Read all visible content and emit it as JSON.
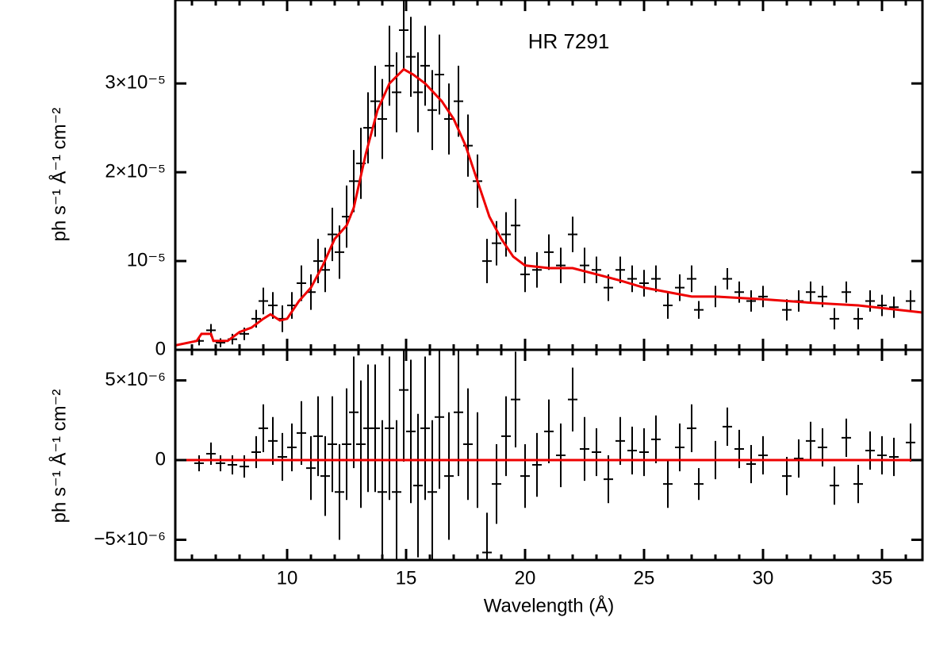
{
  "chart_data": [
    {
      "type": "errorbar",
      "annotation": "HR 7291",
      "ylabel": "ph s⁻¹ Å⁻¹ cm⁻²",
      "xlim": [
        5.3,
        36.7
      ],
      "ylim": [
        0,
        3.94e-05
      ],
      "yticks": [
        0,
        {
          "value": 1e-05,
          "label": "10⁻⁵"
        },
        {
          "value": 2e-05,
          "label": "2×10⁻⁵"
        },
        {
          "value": 3e-05,
          "label": "3×10⁻⁵"
        }
      ],
      "series": [
        {
          "type": "errorbar",
          "color": "#000000",
          "x": [
            6.3,
            6.8,
            7.2,
            7.7,
            8.2,
            8.7,
            9.0,
            9.4,
            9.8,
            10.2,
            10.6,
            11.0,
            11.3,
            11.6,
            11.9,
            12.2,
            12.5,
            12.8,
            13.1,
            13.4,
            13.7,
            14.0,
            14.3,
            14.6,
            14.9,
            15.2,
            15.5,
            15.8,
            16.1,
            16.4,
            16.8,
            17.2,
            17.6,
            18.0,
            18.4,
            18.8,
            19.2,
            19.6,
            20.0,
            20.5,
            21.0,
            21.5,
            22.0,
            22.5,
            23.0,
            23.5,
            24.0,
            24.5,
            25.0,
            25.5,
            26.0,
            26.5,
            27.0,
            27.3,
            28.0,
            28.5,
            29.0,
            29.5,
            30.0,
            31.0,
            31.5,
            32.0,
            32.5,
            33.0,
            33.5,
            34.0,
            34.5,
            35.0,
            35.5,
            36.2
          ],
          "values": [
            1e-06,
            2.2e-06,
            8e-07,
            1.2e-06,
            1.8e-06,
            3.5e-06,
            5.5e-06,
            5e-06,
            3.5e-06,
            5e-06,
            7.5e-06,
            6.5e-06,
            1e-05,
            9e-06,
            1.3e-05,
            1.1e-05,
            1.5e-05,
            1.9e-05,
            2.1e-05,
            2.5e-05,
            2.8e-05,
            2.6e-05,
            3.2e-05,
            2.9e-05,
            3.6e-05,
            3.3e-05,
            2.9e-05,
            3.2e-05,
            2.7e-05,
            3.1e-05,
            2.6e-05,
            2.8e-05,
            2.3e-05,
            1.9e-05,
            1e-05,
            1.2e-05,
            1.3e-05,
            1.4e-05,
            8.5e-06,
            9e-06,
            1.1e-05,
            9.5e-06,
            1.3e-05,
            9.5e-06,
            9e-06,
            7e-06,
            9e-06,
            8e-06,
            7.5e-06,
            8e-06,
            5e-06,
            7e-06,
            8e-06,
            4.5e-06,
            6e-06,
            8e-06,
            6.5e-06,
            5.5e-06,
            6e-06,
            4.5e-06,
            5.5e-06,
            6.5e-06,
            6e-06,
            3.5e-06,
            6.5e-06,
            3.5e-06,
            5.5e-06,
            5e-06,
            4.8e-06,
            5.5e-06
          ],
          "errors": [
            5e-07,
            7e-07,
            5e-07,
            6e-07,
            7e-07,
            1e-06,
            1.5e-06,
            1.5e-06,
            1.5e-06,
            1.5e-06,
            2e-06,
            2e-06,
            2.5e-06,
            2.5e-06,
            3e-06,
            3e-06,
            3.5e-06,
            3.5e-06,
            4e-06,
            4e-06,
            4e-06,
            4.5e-06,
            4.5e-06,
            4.5e-06,
            4.5e-06,
            4.5e-06,
            4.5e-06,
            4.5e-06,
            4.5e-06,
            4.5e-06,
            4e-06,
            4e-06,
            3.5e-06,
            3e-06,
            2.5e-06,
            2.5e-06,
            2.5e-06,
            3e-06,
            2e-06,
            2e-06,
            2e-06,
            2e-06,
            2e-06,
            2e-06,
            1.5e-06,
            1.5e-06,
            1.5e-06,
            1.5e-06,
            1.5e-06,
            1.5e-06,
            1.5e-06,
            1.5e-06,
            1.5e-06,
            1e-06,
            1.2e-06,
            1.2e-06,
            1.2e-06,
            1.2e-06,
            1.2e-06,
            1.2e-06,
            1.2e-06,
            1.2e-06,
            1.2e-06,
            1.2e-06,
            1.2e-06,
            1.2e-06,
            1.2e-06,
            1.2e-06,
            1.2e-06,
            1.2e-06
          ]
        },
        {
          "type": "line",
          "color": "#ee0000",
          "x": [
            5.3,
            6.2,
            6.4,
            6.8,
            6.9,
            7.5,
            8.0,
            8.5,
            9.0,
            9.3,
            9.7,
            10.0,
            10.5,
            11.0,
            11.5,
            12.0,
            12.5,
            12.8,
            13.3,
            13.8,
            14.3,
            14.9,
            15.3,
            15.8,
            16.5,
            17.0,
            17.5,
            18.0,
            18.5,
            19.0,
            19.5,
            20.0,
            21.0,
            22.0,
            23.0,
            24.0,
            25.0,
            26.0,
            27.0,
            28.0,
            30.0,
            32.0,
            34.0,
            36.7
          ],
          "values": [
            5e-07,
            1e-06,
            1.8e-06,
            1.8e-06,
            1e-06,
            1e-06,
            2e-06,
            2.5e-06,
            3.5e-06,
            4e-06,
            3.3e-06,
            3.5e-06,
            5.5e-06,
            7e-06,
            9.5e-06,
            1.25e-05,
            1.4e-05,
            1.6e-05,
            2.2e-05,
            2.7e-05,
            3e-05,
            3.16e-05,
            3.1e-05,
            3e-05,
            2.8e-05,
            2.6e-05,
            2.3e-05,
            1.9e-05,
            1.5e-05,
            1.25e-05,
            1.05e-05,
            9.5e-06,
            9.2e-06,
            9.2e-06,
            8.5e-06,
            7.8e-06,
            7e-06,
            6.5e-06,
            6e-06,
            6e-06,
            5.7e-06,
            5.3e-06,
            5e-06,
            4.2e-06
          ]
        }
      ]
    },
    {
      "type": "errorbar",
      "xlabel": "Wavelength (Å)",
      "ylabel": "ph s⁻¹ Å⁻¹ cm⁻²",
      "xlim": [
        5.3,
        36.7
      ],
      "ylim": [
        -6.27e-06,
        6.92e-06
      ],
      "xticks": [
        10,
        15,
        20,
        25,
        30,
        35
      ],
      "xminorticks": [
        6,
        7,
        8,
        9,
        11,
        12,
        13,
        14,
        16,
        17,
        18,
        19,
        21,
        22,
        23,
        24,
        26,
        27,
        28,
        29,
        31,
        32,
        33,
        34,
        36
      ],
      "yticks": [
        {
          "value": -5e-06,
          "label": "−5×10⁻⁶"
        },
        0,
        {
          "value": 5e-06,
          "label": "5×10⁻⁶"
        }
      ],
      "series": [
        {
          "type": "errorbar",
          "color": "#000000",
          "x": [
            6.3,
            6.8,
            7.2,
            7.7,
            8.2,
            8.7,
            9.0,
            9.4,
            9.8,
            10.2,
            10.6,
            11.0,
            11.3,
            11.6,
            11.9,
            12.2,
            12.5,
            12.8,
            13.1,
            13.4,
            13.7,
            14.0,
            14.3,
            14.6,
            14.9,
            15.2,
            15.5,
            15.8,
            16.1,
            16.4,
            16.8,
            17.2,
            17.6,
            18.0,
            18.4,
            18.8,
            19.2,
            19.6,
            20.0,
            20.5,
            21.0,
            21.5,
            22.0,
            22.5,
            23.0,
            23.5,
            24.0,
            24.5,
            25.0,
            25.5,
            26.0,
            26.5,
            27.0,
            27.3,
            28.0,
            28.5,
            29.0,
            29.5,
            30.0,
            31.0,
            31.5,
            32.0,
            32.5,
            33.0,
            33.5,
            34.0,
            34.5,
            35.0,
            35.5,
            36.2
          ],
          "values": [
            -2e-07,
            4e-07,
            -2e-07,
            -3e-07,
            -4e-07,
            5e-07,
            2e-06,
            1.2e-06,
            2e-07,
            8e-07,
            1.7e-06,
            -5e-07,
            1.5e-06,
            -1e-06,
            1e-06,
            -2e-06,
            1e-06,
            3e-06,
            1e-06,
            2e-06,
            2e-06,
            -2e-06,
            2e-06,
            -2e-06,
            4.4e-06,
            1.8e-06,
            -1.6e-06,
            2e-06,
            -2e-06,
            2.7e-06,
            -1e-06,
            3e-06,
            1e-06,
            0,
            -5.8e-06,
            -1.5e-06,
            1.5e-06,
            3.8e-06,
            -1e-06,
            -3e-07,
            1.8e-06,
            3e-07,
            3.8e-06,
            7e-07,
            5e-07,
            -1.2e-06,
            1.2e-06,
            6e-07,
            5e-07,
            1.3e-06,
            -1.5e-06,
            8e-07,
            2e-06,
            -1.5e-06,
            0,
            2.1e-06,
            7e-07,
            -2.5e-07,
            3e-07,
            -1e-06,
            1e-07,
            1.2e-06,
            8e-07,
            -1.6e-06,
            1.4e-06,
            -1.5e-06,
            6e-07,
            3e-07,
            2e-07,
            1.1e-06
          ],
          "errors": [
            5e-07,
            7e-07,
            5e-07,
            6e-07,
            7e-07,
            1e-06,
            1.5e-06,
            1.5e-06,
            1.5e-06,
            1.5e-06,
            2e-06,
            2e-06,
            2.5e-06,
            2.5e-06,
            3e-06,
            3e-06,
            3.5e-06,
            3.5e-06,
            4e-06,
            4e-06,
            4e-06,
            4.5e-06,
            4.5e-06,
            4.5e-06,
            4.5e-06,
            4.5e-06,
            4.5e-06,
            4.5e-06,
            4.5e-06,
            4.5e-06,
            4e-06,
            4e-06,
            3.5e-06,
            3e-06,
            2.5e-06,
            2.5e-06,
            2.5e-06,
            3e-06,
            2e-06,
            2e-06,
            2e-06,
            2e-06,
            2e-06,
            2e-06,
            1.5e-06,
            1.5e-06,
            1.5e-06,
            1.5e-06,
            1.5e-06,
            1.5e-06,
            1.5e-06,
            1.5e-06,
            1.5e-06,
            1e-06,
            1.2e-06,
            1.2e-06,
            1.2e-06,
            1.2e-06,
            1.2e-06,
            1.2e-06,
            1.2e-06,
            1.2e-06,
            1.2e-06,
            1.2e-06,
            1.2e-06,
            1.2e-06,
            1.2e-06,
            1.2e-06,
            1.2e-06,
            1.2e-06
          ]
        },
        {
          "type": "line",
          "color": "#ee0000",
          "x": [
            5.3,
            36.7
          ],
          "values": [
            0,
            0
          ]
        }
      ]
    }
  ]
}
